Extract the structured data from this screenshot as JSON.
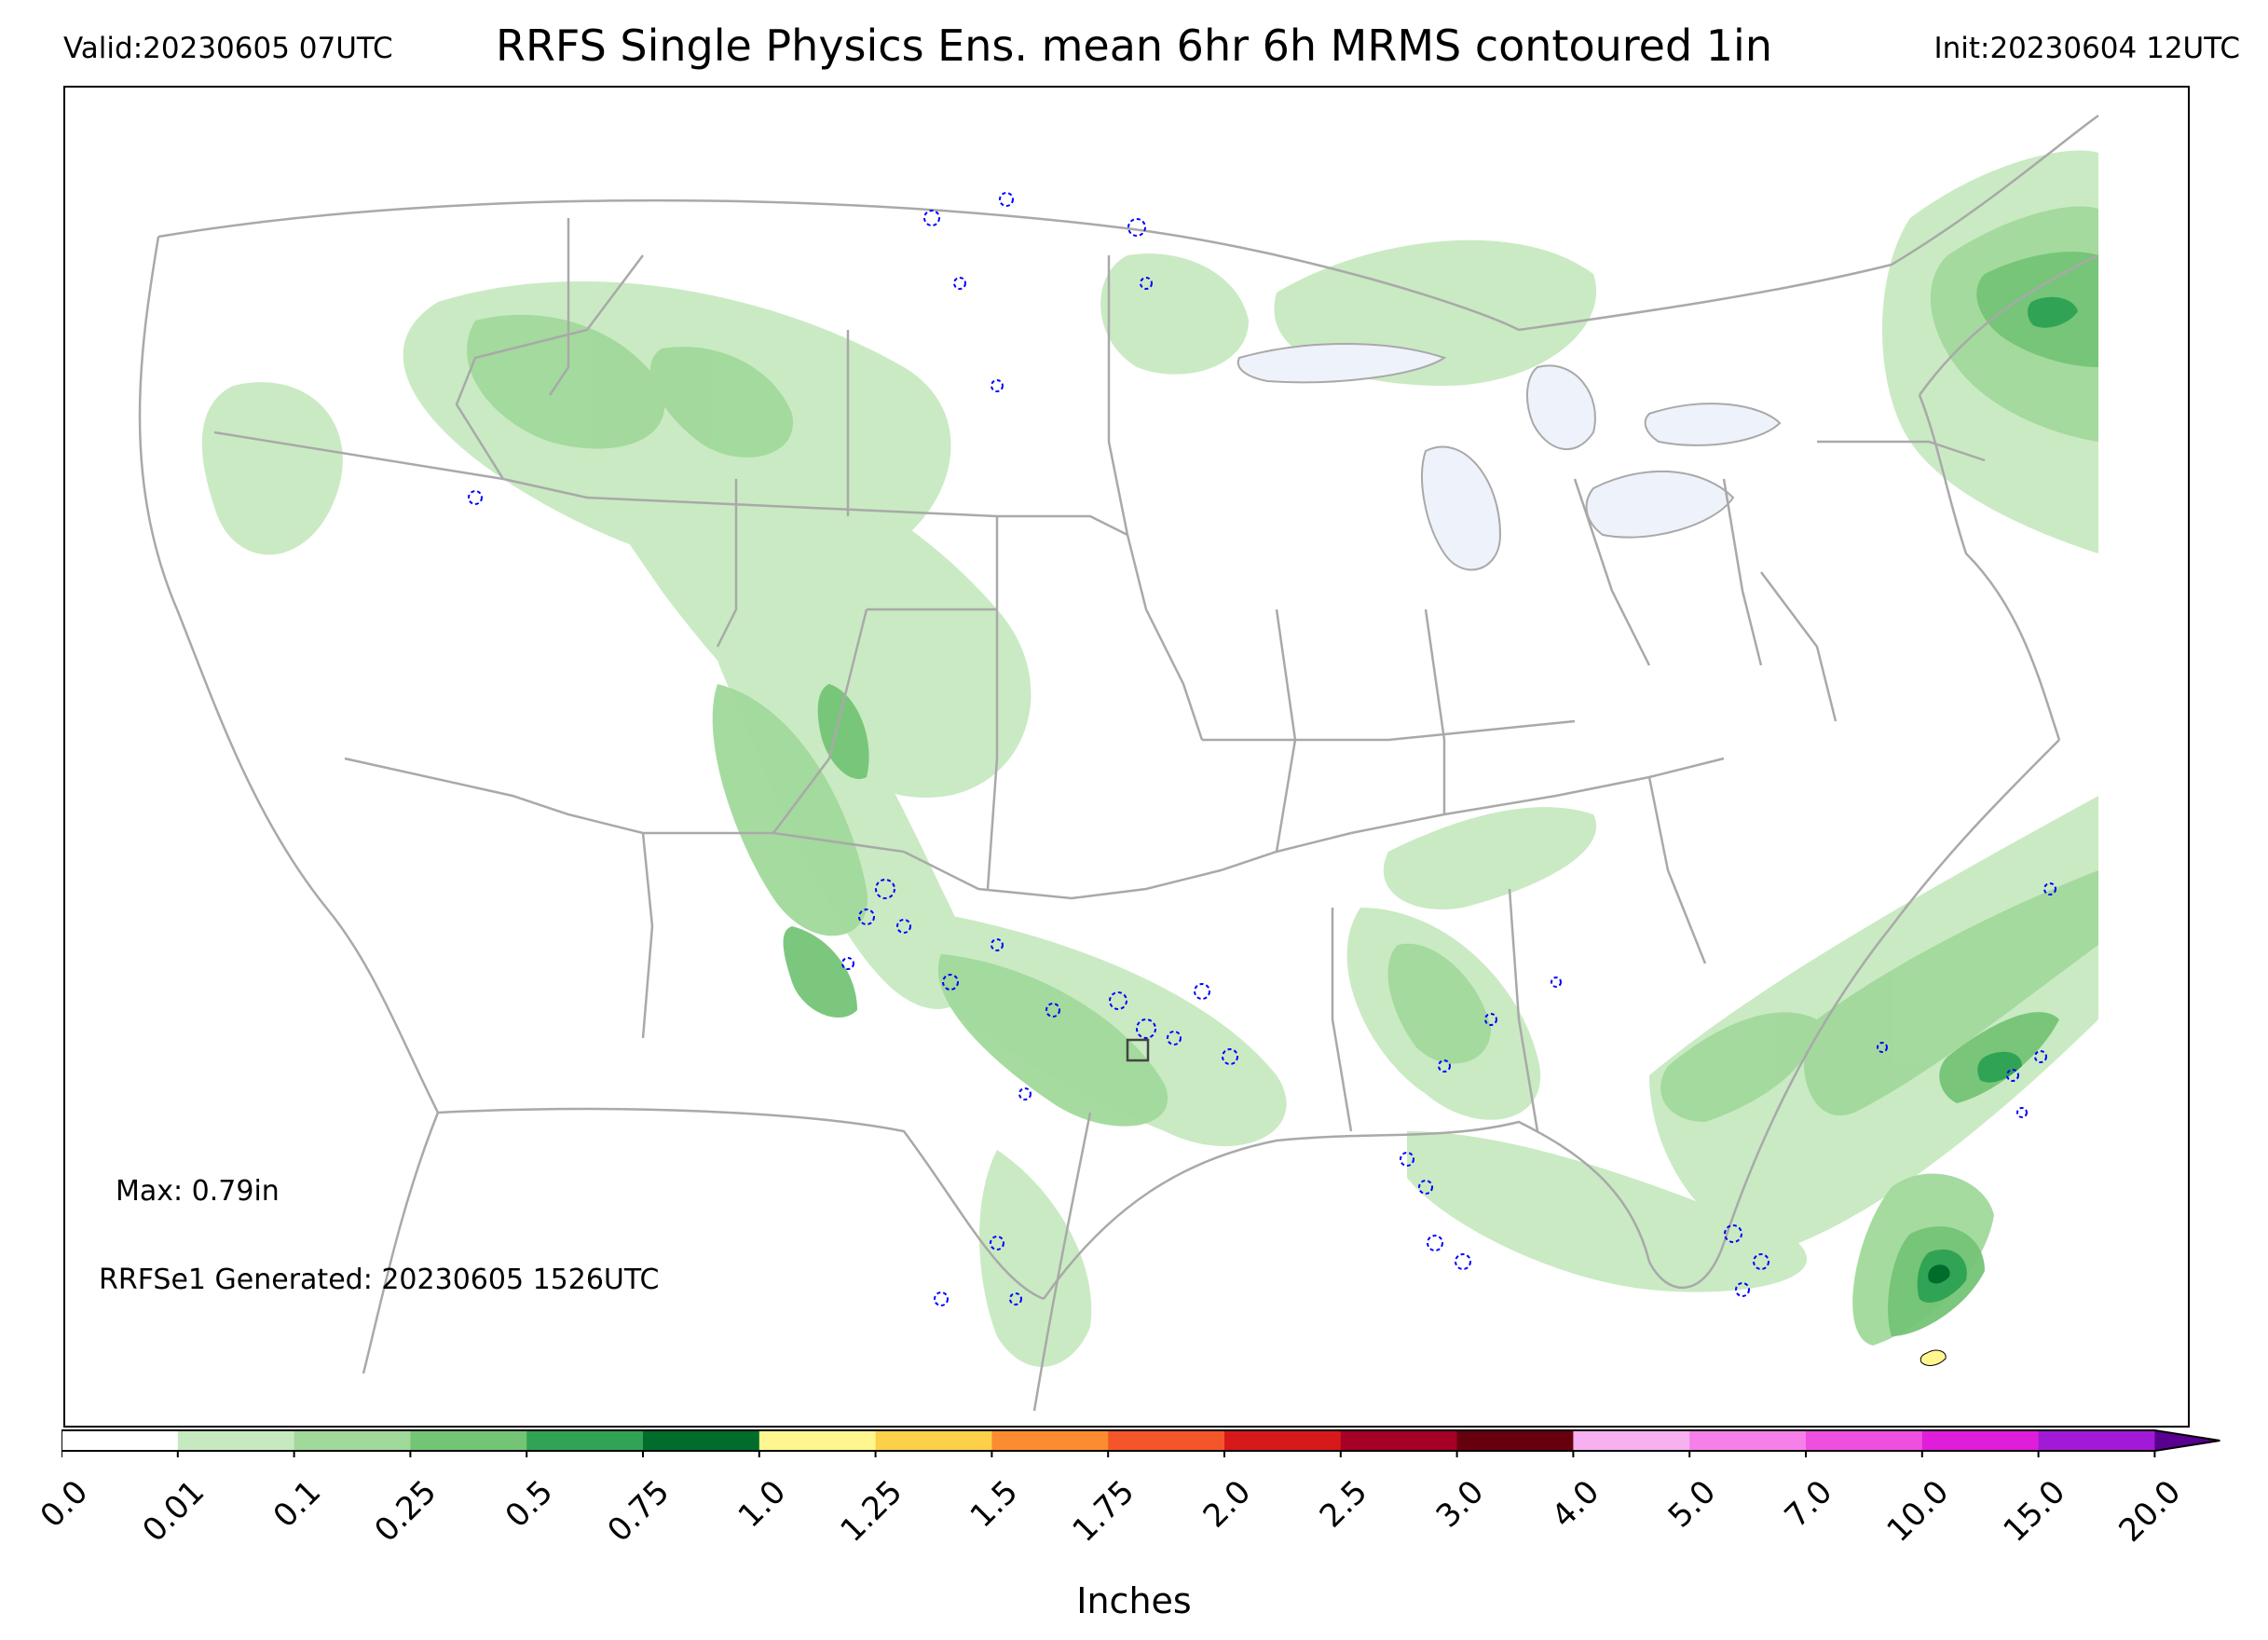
{
  "header": {
    "valid": "Valid:20230605 07UTC",
    "title": "RRFS Single Physics Ens. mean 6hr 6h MRMS contoured 1in",
    "init": "Init:20230604 12UTC"
  },
  "annotations": {
    "max": "Max: 0.79in",
    "generated": "RRFSe1 Generated: 20230605 1526UTC"
  },
  "colorbar": {
    "title": "Inches",
    "ticks": [
      "0.0",
      "0.01",
      "0.1",
      "0.25",
      "0.5",
      "0.75",
      "1.0",
      "1.25",
      "1.5",
      "1.75",
      "2.0",
      "2.5",
      "3.0",
      "4.0",
      "5.0",
      "7.0",
      "10.0",
      "15.0",
      "20.0"
    ],
    "colors": [
      "#ffffff",
      "#c7e9c0",
      "#a1d99b",
      "#74c476",
      "#31a354",
      "#006d2c",
      "#fff68f",
      "#fdd049",
      "#fb8c2f",
      "#f4562a",
      "#d7191c",
      "#a50026",
      "#67000d",
      "#f7b0f0",
      "#f580e8",
      "#ef4fe0",
      "#df1ed9",
      "#a21ad6"
    ],
    "extend_color": "#5a0090"
  },
  "map": {
    "contour_color": "#0000ff",
    "border_color": "#a9a9a9",
    "lake_color": "#eef2fa"
  }
}
